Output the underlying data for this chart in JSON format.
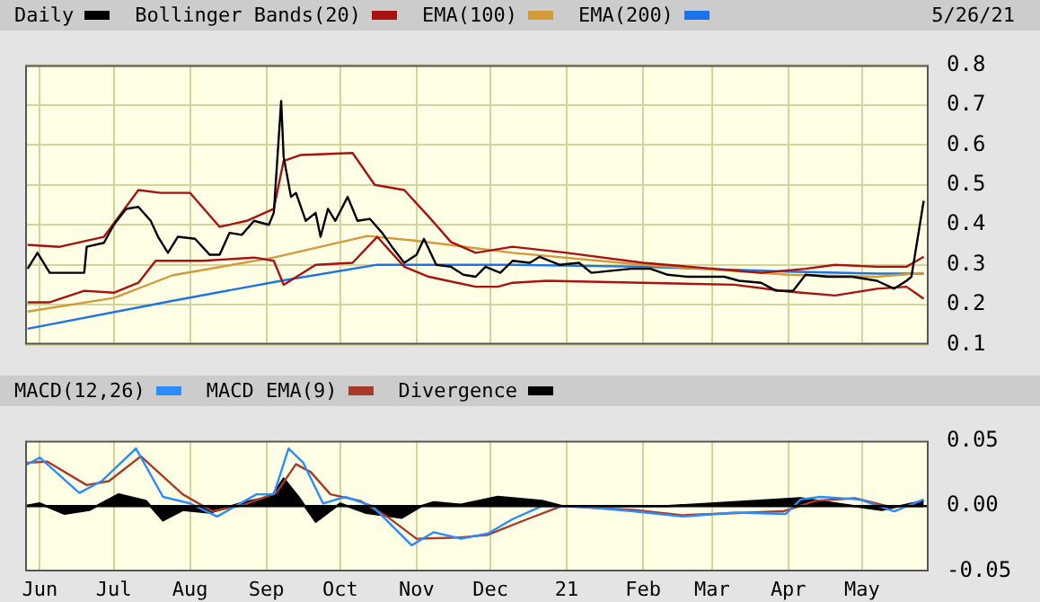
{
  "chart_data": [
    {
      "type": "line",
      "legend": "top",
      "grid": true,
      "tick_labels": "y",
      "annotations": [
        "5/26/21"
      ],
      "xlim": [
        "2020-05-26",
        "2021-05-28"
      ],
      "xticks": [
        "2020-06-01",
        "2020-07-01",
        "2020-08-01",
        "2020-09-01",
        "2020-10-01",
        "2020-11-01",
        "2020-12-01",
        "2021-01-01",
        "2021-02-01",
        "2021-03-01",
        "2021-04-01",
        "2021-05-01"
      ],
      "ylim": [
        0.1,
        0.8
      ],
      "yticks": [
        0.1,
        0.2,
        0.3,
        0.4,
        0.5,
        0.6,
        0.7,
        0.8
      ],
      "series": [
        {
          "name": "Daily",
          "color": "#000000",
          "x": [
            "2020-05-27",
            "2020-05-31",
            "2020-06-05",
            "2020-06-09",
            "2020-06-19",
            "2020-06-20",
            "2020-06-27",
            "2020-07-01",
            "2020-07-06",
            "2020-07-11",
            "2020-07-16",
            "2020-07-19",
            "2020-07-23",
            "2020-07-27",
            "2020-08-03",
            "2020-08-09",
            "2020-08-13",
            "2020-08-17",
            "2020-08-22",
            "2020-08-27",
            "2020-09-02",
            "2020-09-04",
            "2020-09-07",
            "2020-09-08",
            "2020-09-11",
            "2020-09-13",
            "2020-09-17",
            "2020-09-21",
            "2020-09-23",
            "2020-09-26",
            "2020-09-29",
            "2020-10-04",
            "2020-10-08",
            "2020-10-13",
            "2020-10-18",
            "2020-10-22",
            "2020-10-27",
            "2020-11-01",
            "2020-11-04",
            "2020-11-09",
            "2020-11-15",
            "2020-11-20",
            "2020-11-25",
            "2020-11-29",
            "2020-12-05",
            "2020-12-10",
            "2020-12-17",
            "2020-12-21",
            "2020-12-29",
            "2021-01-06",
            "2021-01-11",
            "2021-01-19",
            "2021-01-27",
            "2021-02-04",
            "2021-02-11",
            "2021-02-19",
            "2021-02-26",
            "2021-03-06",
            "2021-03-12",
            "2021-03-21",
            "2021-03-27",
            "2021-04-03",
            "2021-04-08",
            "2021-04-17",
            "2021-04-27",
            "2021-05-07",
            "2021-05-14",
            "2021-05-19",
            "2021-05-21",
            "2021-05-26"
          ],
          "values": [
            0.29,
            0.33,
            0.28,
            0.28,
            0.28,
            0.345,
            0.355,
            0.4,
            0.44,
            0.445,
            0.41,
            0.37,
            0.33,
            0.37,
            0.365,
            0.325,
            0.325,
            0.38,
            0.375,
            0.41,
            0.4,
            0.43,
            0.71,
            0.57,
            0.47,
            0.48,
            0.41,
            0.43,
            0.37,
            0.44,
            0.41,
            0.47,
            0.41,
            0.415,
            0.38,
            0.345,
            0.305,
            0.325,
            0.365,
            0.3,
            0.295,
            0.275,
            0.27,
            0.295,
            0.28,
            0.31,
            0.305,
            0.32,
            0.3,
            0.305,
            0.28,
            0.285,
            0.29,
            0.29,
            0.275,
            0.27,
            0.27,
            0.27,
            0.26,
            0.255,
            0.235,
            0.235,
            0.275,
            0.27,
            0.27,
            0.26,
            0.24,
            0.26,
            0.27,
            0.46
          ]
        },
        {
          "name": "Bollinger Bands(20)",
          "color": "#aa1111",
          "x": [
            "2020-05-27",
            "2020-06-09",
            "2020-06-27",
            "2020-07-11",
            "2020-07-20",
            "2020-08-01",
            "2020-08-13",
            "2020-08-24",
            "2020-09-04",
            "2020-09-08",
            "2020-09-15",
            "2020-10-06",
            "2020-10-15",
            "2020-10-27",
            "2020-11-06",
            "2020-11-15",
            "2020-11-25",
            "2020-12-10",
            "2021-01-01",
            "2021-02-01",
            "2021-03-21",
            "2021-04-08",
            "2021-04-20",
            "2021-05-07",
            "2021-05-19",
            "2021-05-26"
          ],
          "values": [
            0.35,
            0.345,
            0.37,
            0.487,
            0.48,
            0.48,
            0.395,
            0.41,
            0.44,
            0.56,
            0.575,
            0.58,
            0.5,
            0.487,
            0.42,
            0.357,
            0.33,
            0.345,
            0.33,
            0.305,
            0.28,
            0.29,
            0.3,
            0.295,
            0.295,
            0.32
          ]
        },
        {
          "color": "#aa1111",
          "x": [
            "2020-05-27",
            "2020-06-05",
            "2020-06-19",
            "2020-07-01",
            "2020-07-11",
            "2020-07-18",
            "2020-08-06",
            "2020-08-27",
            "2020-09-04",
            "2020-09-08",
            "2020-09-21",
            "2020-10-06",
            "2020-10-16",
            "2020-10-27",
            "2020-11-06",
            "2020-11-25",
            "2020-12-04",
            "2020-12-10",
            "2020-12-24",
            "2021-02-01",
            "2021-03-10",
            "2021-04-01",
            "2021-04-20",
            "2021-05-07",
            "2021-05-19",
            "2021-05-26"
          ],
          "values": [
            0.206,
            0.206,
            0.235,
            0.23,
            0.255,
            0.31,
            0.31,
            0.318,
            0.31,
            0.25,
            0.3,
            0.305,
            0.37,
            0.295,
            0.27,
            0.245,
            0.245,
            0.255,
            0.26,
            0.255,
            0.25,
            0.233,
            0.223,
            0.24,
            0.245,
            0.215
          ]
        },
        {
          "name": "EMA(100)",
          "color": "#d49a3a",
          "x": [
            "2020-05-27",
            "2020-07-01",
            "2020-07-25",
            "2020-09-04",
            "2020-10-12",
            "2020-11-01",
            "2020-12-10",
            "2021-02-01",
            "2021-04-01",
            "2021-05-07",
            "2021-05-26"
          ],
          "values": [
            0.183,
            0.217,
            0.274,
            0.318,
            0.372,
            0.36,
            0.33,
            0.3,
            0.275,
            0.27,
            0.28
          ]
        },
        {
          "name": "EMA(200)",
          "color": "#1a73e8",
          "x": [
            "2020-05-27",
            "2020-07-25",
            "2020-09-07",
            "2020-10-16",
            "2020-12-10",
            "2021-02-01",
            "2021-04-01",
            "2021-05-07",
            "2021-05-26"
          ],
          "values": [
            0.14,
            0.21,
            0.26,
            0.3,
            0.3,
            0.295,
            0.283,
            0.278,
            0.278
          ]
        }
      ]
    },
    {
      "type": "line",
      "legend": "top",
      "grid": "x",
      "xlim": [
        "2020-05-26",
        "2021-05-28"
      ],
      "xticks": [
        {
          "value": "2020-06-01",
          "label": "Jun"
        },
        {
          "value": "2020-07-01",
          "label": "Jul"
        },
        {
          "value": "2020-08-01",
          "label": "Aug"
        },
        {
          "value": "2020-09-01",
          "label": "Sep"
        },
        {
          "value": "2020-10-01",
          "label": "Oct"
        },
        {
          "value": "2020-11-01",
          "label": "Nov"
        },
        {
          "value": "2020-12-01",
          "label": "Dec"
        },
        {
          "value": "2021-01-01",
          "label": "21"
        },
        {
          "value": "2021-02-01",
          "label": "Feb"
        },
        {
          "value": "2021-03-01",
          "label": "Mar"
        },
        {
          "value": "2021-04-01",
          "label": "Apr"
        },
        {
          "value": "2021-05-01",
          "label": "May"
        }
      ],
      "ylim": [
        -0.05,
        0.05
      ],
      "yticks": [
        -0.05,
        {
          "value": 0,
          "label": "0.00"
        },
        0.05
      ],
      "ref_lines": [
        {
          "axis": "y",
          "value": 0,
          "color": "#000000"
        }
      ],
      "series": [
        {
          "name": "MACD(12,26)",
          "color": "#2a8cff",
          "x": [
            "2020-05-26",
            "2020-06-01",
            "2020-06-17",
            "2020-06-26",
            "2020-07-10",
            "2020-07-21",
            "2020-08-01",
            "2020-08-12",
            "2020-08-28",
            "2020-09-04",
            "2020-09-10",
            "2020-09-16",
            "2020-09-24",
            "2020-10-03",
            "2020-10-14",
            "2020-10-30",
            "2020-11-08",
            "2020-11-19",
            "2020-11-30",
            "2020-12-10",
            "2020-12-22",
            "2021-01-04",
            "2021-01-28",
            "2021-02-17",
            "2021-03-10",
            "2021-03-31",
            "2021-04-06",
            "2021-04-14",
            "2021-04-30",
            "2021-05-14",
            "2021-05-26"
          ],
          "values": [
            0.031,
            0.037,
            0.01,
            0.019,
            0.044,
            0.007,
            0.002,
            -0.008,
            0.009,
            0.009,
            0.044,
            0.033,
            0.002,
            0.007,
            0,
            -0.03,
            -0.02,
            -0.025,
            -0.021,
            -0.01,
            0,
            0,
            -0.004,
            -0.008,
            -0.005,
            -0.006,
            0.005,
            0.007,
            0.005,
            -0.004,
            0.005
          ]
        },
        {
          "name": "MACD EMA(9)",
          "color": "#a83a2a",
          "x": [
            "2020-05-26",
            "2020-06-04",
            "2020-06-20",
            "2020-06-29",
            "2020-07-12",
            "2020-07-29",
            "2020-08-10",
            "2020-08-23",
            "2020-09-05",
            "2020-09-13",
            "2020-09-19",
            "2020-09-27",
            "2020-10-09",
            "2020-10-20",
            "2020-11-01",
            "2020-11-19",
            "2020-11-30",
            "2020-12-16",
            "2020-12-30",
            "2021-01-28",
            "2021-02-17",
            "2021-03-30",
            "2021-04-12",
            "2021-04-28",
            "2021-05-11",
            "2021-05-26"
          ],
          "values": [
            0.033,
            0.034,
            0.016,
            0.019,
            0.038,
            0.009,
            -0.004,
            0.001,
            0.01,
            0.032,
            0.026,
            0.009,
            0.004,
            -0.008,
            -0.025,
            -0.024,
            -0.022,
            -0.01,
            0,
            -0.003,
            -0.007,
            -0.004,
            0.004,
            0.006,
            0,
            0
          ]
        },
        {
          "name": "Divergence",
          "type": "area",
          "color": "#000000",
          "x": [
            "2020-05-26",
            "2020-06-01",
            "2020-06-11",
            "2020-06-21",
            "2020-07-03",
            "2020-07-14",
            "2020-07-21",
            "2020-07-29",
            "2020-08-09",
            "2020-08-23",
            "2020-09-03",
            "2020-09-08",
            "2020-09-14",
            "2020-09-21",
            "2020-10-01",
            "2020-10-11",
            "2020-10-26",
            "2020-11-03",
            "2020-11-08",
            "2020-11-19",
            "2020-12-04",
            "2020-12-22",
            "2020-12-30",
            "2021-02-11",
            "2021-04-06",
            "2021-04-20",
            "2021-05-09",
            "2021-05-26"
          ],
          "values": [
            0,
            0.002,
            -0.006,
            -0.003,
            0.009,
            0.004,
            -0.011,
            -0.003,
            -0.005,
            0.003,
            0.007,
            0.021,
            0.007,
            -0.012,
            0.002,
            -0.005,
            -0.009,
            0,
            0.003,
            0.001,
            0.007,
            0.004,
            0,
            0,
            0.006,
            0.002,
            -0.003,
            0.004
          ]
        }
      ]
    }
  ]
}
